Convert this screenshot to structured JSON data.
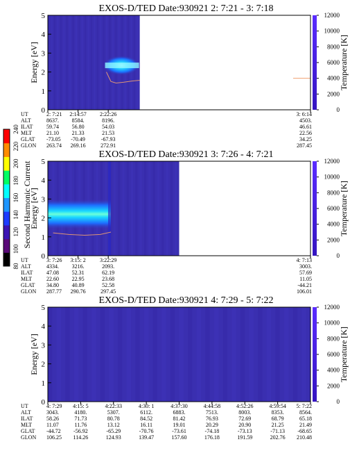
{
  "colors": {
    "background": "#3a2fb0",
    "temperature_curve": "#f0a070",
    "colorbar_low": "#3a14c8",
    "colorbar_high": "#5228ff"
  },
  "chart_data": [
    {
      "type": "heatmap",
      "title": "EXOS-D/TED   Date:930921  2: 7:21 - 3: 7:18",
      "ylabel": "Energy [eV]",
      "ylim": [
        0,
        5
      ],
      "yticks": [
        "0",
        "1",
        "2",
        "3",
        "4",
        "5"
      ],
      "right_axis": {
        "label": "Temperature [K]",
        "ylim": [
          0,
          12000
        ],
        "ticks": [
          "0",
          "2000",
          "4000",
          "6000",
          "8000",
          "10000",
          "12000"
        ]
      },
      "data_extent_fraction": 0.35,
      "band": {
        "energy_center_ev": 2.35,
        "x_start_fraction": 0.21,
        "x_end_fraction": 0.35
      },
      "temperature_curve_K": [
        {
          "t": 0.223,
          "T": 4800
        },
        {
          "t": 0.24,
          "T": 3600
        },
        {
          "t": 0.26,
          "T": 3400
        },
        {
          "t": 0.29,
          "T": 3500
        },
        {
          "t": 0.32,
          "T": 3650
        },
        {
          "t": 0.35,
          "T": 3750
        }
      ],
      "right_reading_T": "4000",
      "table": {
        "labels": [
          "UT",
          "ALT",
          "ILAT",
          "MLT",
          "GLAT",
          "GLON"
        ],
        "columns": [
          [
            "2: 7:21",
            "8637.",
            "59.74",
            "21.10",
            "-73.05",
            "263.74"
          ],
          [
            "2:14:57",
            "8584.",
            "56.80",
            "21.33",
            "-70.49",
            "269.16"
          ],
          [
            "2:22:26",
            "8196.",
            "54.03",
            "21.53",
            "-67.93",
            "272.91"
          ],
          [
            "3: 6:14",
            "4503.",
            "46.61",
            "22.56",
            "34.25",
            "287.45"
          ]
        ],
        "column_time_fractions": [
          0.0,
          0.115,
          0.23,
          1.0
        ]
      }
    },
    {
      "type": "heatmap",
      "title": "EXOS-D/TED   Date:930921  3: 7:26 - 4: 7:21",
      "ylabel": "Energy [eV]",
      "ylim": [
        0,
        5
      ],
      "yticks": [
        "0",
        "1",
        "2",
        "3",
        "4",
        "5"
      ],
      "right_axis": {
        "label": "Temperature [K]",
        "ylim": [
          0,
          12000
        ],
        "ticks": [
          "0",
          "2000",
          "4000",
          "6000",
          "8000",
          "10000",
          "12000"
        ]
      },
      "data_extent_fraction": 0.5,
      "band": {
        "energy_center_ev": 2.2,
        "x_start_fraction": 0.0,
        "x_end_fraction": 0.24
      },
      "temperature_curve_K": [
        {
          "t": 0.02,
          "T": 2900
        },
        {
          "t": 0.08,
          "T": 2700
        },
        {
          "t": 0.14,
          "T": 2600
        },
        {
          "t": 0.2,
          "T": 2700
        },
        {
          "t": 0.24,
          "T": 3000
        }
      ],
      "colorbar": {
        "label": "Second Harmonic Current",
        "ticks": [
          "80",
          "100",
          "120",
          "140",
          "160",
          "180",
          "200",
          "220",
          "240"
        ],
        "colors": [
          "#000000",
          "#5a0a78",
          "#3c14b4",
          "#1e3cff",
          "#1e96ff",
          "#00ffff",
          "#00ff64",
          "#ffff00",
          "#ff8c00",
          "#ff0000"
        ]
      },
      "table": {
        "labels": [
          "UT",
          "ALT",
          "ILAT",
          "MLT",
          "GLAT",
          "GLON"
        ],
        "columns": [
          [
            "3: 7:26",
            "4334.",
            "47.08",
            "22.60",
            "34.80",
            "287.77"
          ],
          [
            "3:15: 2",
            "3216.",
            "52.31",
            "22.95",
            "40.89",
            "290.76"
          ],
          [
            "3:22:29",
            "2093.",
            "62.19",
            "23.68",
            "52.58",
            "297.45"
          ],
          [
            "4: 7:13",
            "3003.",
            "57.69",
            "11.05",
            "-44.21",
            "106.01"
          ]
        ],
        "column_time_fractions": [
          0.0,
          0.115,
          0.23,
          1.0
        ]
      }
    },
    {
      "type": "heatmap",
      "title": "EXOS-D/TED   Date:930921  4: 7:29 - 5: 7:22",
      "ylabel": "Energy [eV]",
      "ylim": [
        0,
        5
      ],
      "yticks": [
        "0",
        "1",
        "2",
        "3",
        "4",
        "5"
      ],
      "right_axis": {
        "label": "Temperature [K]",
        "ylim": [
          0,
          12000
        ],
        "ticks": [
          "0",
          "2000",
          "4000",
          "6000",
          "8000",
          "10000",
          "12000"
        ]
      },
      "data_extent_fraction": 1.0,
      "table": {
        "labels": [
          "UT",
          "ALT",
          "ILAT",
          "MLT",
          "GLAT",
          "GLON"
        ],
        "columns": [
          [
            "4: 7:29",
            "3043.",
            "58.26",
            "11.07",
            "-44.72",
            "106.25"
          ],
          [
            "4:15: 5",
            "4180.",
            "71.73",
            "11.76",
            "-56.92",
            "114.26"
          ],
          [
            "4:22:33",
            "5307.",
            "80.78",
            "13.12",
            "-65.29",
            "124.93"
          ],
          [
            "4:30: 1",
            "6112.",
            "84.52",
            "16.11",
            "-70.76",
            "139.47"
          ],
          [
            "4:37:30",
            "6883.",
            "81.42",
            "19.01",
            "-73.61",
            "157.60"
          ],
          [
            "4:44:58",
            "7513.",
            "76.93",
            "20.29",
            "-74.18",
            "176.18"
          ],
          [
            "4:52:26",
            "8003.",
            "72.69",
            "20.90",
            "-73.13",
            "191.59"
          ],
          [
            "4:59:54",
            "8353.",
            "68.79",
            "21.25",
            "-71.13",
            "202.76"
          ],
          [
            "5: 7:22",
            "8564.",
            "65.18",
            "21.49",
            "-68.65",
            "210.48"
          ]
        ],
        "column_time_fractions": [
          0.0,
          0.125,
          0.25,
          0.375,
          0.5,
          0.625,
          0.75,
          0.875,
          1.0
        ]
      }
    }
  ]
}
